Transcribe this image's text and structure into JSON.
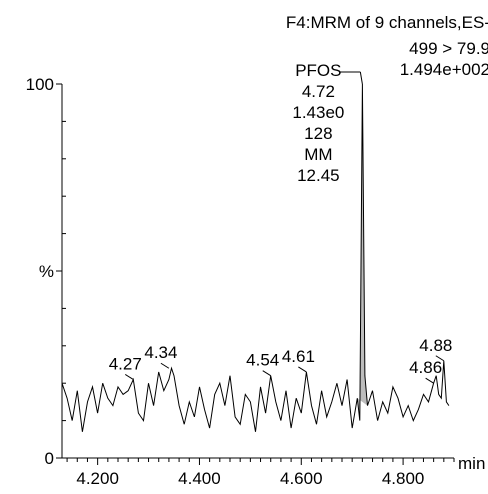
{
  "header": {
    "line1": "F4:MRM of 9 channels,ES-",
    "line2": "499 > 79.9",
    "line3": "1.494e+002"
  },
  "chart_data": {
    "type": "line",
    "xlabel": "min",
    "ylabel": "%",
    "xlim": [
      4.13,
      4.9
    ],
    "ylim": [
      0,
      100
    ],
    "x_ticks": [
      {
        "value": 4.2,
        "label": "4.200"
      },
      {
        "value": 4.4,
        "label": "4.400"
      },
      {
        "value": 4.6,
        "label": "4.600"
      },
      {
        "value": 4.8,
        "label": "4.800"
      }
    ],
    "y_ticks": [
      {
        "value": 0,
        "label": "0"
      },
      {
        "value": 50,
        "label": "%"
      },
      {
        "value": 100,
        "label": "100"
      }
    ],
    "series": [
      {
        "x": [
          4.13,
          4.14,
          4.15,
          4.16,
          4.17,
          4.18,
          4.19,
          4.2,
          4.21,
          4.22,
          4.23,
          4.24,
          4.25,
          4.26,
          4.27,
          4.28,
          4.29,
          4.3,
          4.31,
          4.32,
          4.33,
          4.34,
          4.345,
          4.35,
          4.36,
          4.37,
          4.38,
          4.39,
          4.4,
          4.41,
          4.42,
          4.43,
          4.44,
          4.45,
          4.46,
          4.47,
          4.48,
          4.49,
          4.5,
          4.51,
          4.52,
          4.53,
          4.54,
          4.55,
          4.56,
          4.57,
          4.58,
          4.59,
          4.6,
          4.61,
          4.62,
          4.63,
          4.64,
          4.65,
          4.66,
          4.67,
          4.68,
          4.69,
          4.7,
          4.71,
          4.715,
          4.72,
          4.725,
          4.73,
          4.74,
          4.75,
          4.76,
          4.77,
          4.78,
          4.79,
          4.8,
          4.81,
          4.82,
          4.83,
          4.84,
          4.85,
          4.86,
          4.865,
          4.87,
          4.875,
          4.88,
          4.885,
          4.89
        ],
        "y": [
          20,
          16,
          10,
          18,
          7,
          15,
          19,
          12,
          20,
          16,
          14,
          19,
          17,
          18,
          21,
          12,
          10,
          20,
          14,
          23,
          18,
          21,
          24,
          22,
          14,
          9,
          15,
          11,
          19,
          13,
          8,
          17,
          20,
          14,
          22,
          11,
          9,
          17,
          15,
          7,
          19,
          12,
          22,
          15,
          10,
          18,
          8,
          16,
          12,
          23,
          14,
          9,
          18,
          11,
          15,
          20,
          14,
          21,
          8,
          16,
          10,
          100,
          22,
          14,
          18,
          10,
          15,
          12,
          19,
          16,
          11,
          14,
          10,
          13,
          17,
          15,
          20,
          22,
          17,
          16,
          26,
          15,
          14
        ],
        "fill_peak": [
          4.712,
          4.728
        ]
      }
    ],
    "annotations": [
      {
        "x": 4.27,
        "y": 21,
        "label": "4.27"
      },
      {
        "x": 4.34,
        "y": 24,
        "label": "4.34"
      },
      {
        "x": 4.54,
        "y": 22,
        "label": "4.54"
      },
      {
        "x": 4.61,
        "y": 23,
        "label": "4.61"
      },
      {
        "x": 4.86,
        "y": 20,
        "label": "4.86"
      },
      {
        "x": 4.88,
        "y": 26,
        "label": "4.88"
      }
    ],
    "peak_label": {
      "x": 4.72,
      "y": 100,
      "lines": [
        "PFOS",
        "4.72",
        "1.43e0",
        "128",
        "MM",
        "12.45"
      ]
    }
  }
}
